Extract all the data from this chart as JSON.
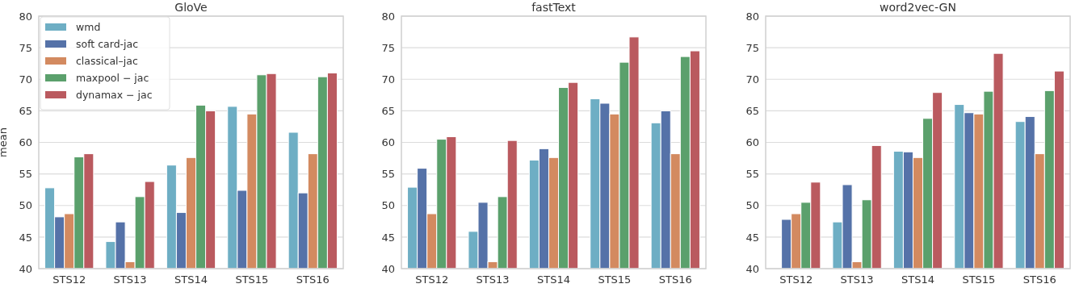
{
  "chart_data": [
    {
      "type": "bar",
      "title": "GloVe",
      "ylabel": "mean",
      "categories": [
        "STS12",
        "STS13",
        "STS14",
        "STS15",
        "STS16"
      ],
      "ylim": [
        40,
        80
      ],
      "yticks": [
        40,
        45,
        50,
        55,
        60,
        65,
        70,
        75,
        80
      ],
      "grid": "y",
      "legend": "top left",
      "series": [
        {
          "name": "wmd",
          "color": "#6eaec4",
          "values": [
            52.8,
            44.3,
            56.4,
            65.7,
            61.6
          ]
        },
        {
          "name": "soft card-jac",
          "color": "#5572a8",
          "values": [
            48.2,
            47.4,
            48.9,
            52.4,
            52.0
          ]
        },
        {
          "name": "classical–jac",
          "color": "#d38a60",
          "values": [
            48.7,
            41.1,
            57.6,
            64.5,
            58.2
          ]
        },
        {
          "name": "maxpool − jac",
          "color": "#5ba06c",
          "values": [
            57.7,
            51.4,
            65.9,
            70.7,
            70.4
          ]
        },
        {
          "name": "dynamax − jac",
          "color": "#ba5a5f",
          "values": [
            58.2,
            53.8,
            65.0,
            70.9,
            71.0
          ]
        }
      ]
    },
    {
      "type": "bar",
      "title": "fastText",
      "categories": [
        "STS12",
        "STS13",
        "STS14",
        "STS15",
        "STS16"
      ],
      "ylim": [
        40,
        80
      ],
      "yticks": [
        40,
        45,
        50,
        55,
        60,
        65,
        70,
        75,
        80
      ],
      "grid": "y",
      "series": [
        {
          "color": "#6eaec4",
          "values": [
            52.9,
            45.9,
            57.2,
            66.9,
            63.1
          ]
        },
        {
          "color": "#5572a8",
          "values": [
            55.9,
            50.5,
            59.0,
            66.2,
            65.0
          ]
        },
        {
          "color": "#d38a60",
          "values": [
            48.7,
            41.1,
            57.6,
            64.5,
            58.2
          ]
        },
        {
          "color": "#5ba06c",
          "values": [
            60.5,
            51.4,
            68.7,
            72.7,
            73.6
          ]
        },
        {
          "color": "#ba5a5f",
          "values": [
            60.9,
            60.3,
            69.5,
            76.7,
            74.5
          ]
        }
      ]
    },
    {
      "type": "bar",
      "title": "word2vec-GN",
      "categories": [
        "STS12",
        "STS13",
        "STS14",
        "STS15",
        "STS16"
      ],
      "ylim": [
        40,
        80
      ],
      "yticks": [
        40,
        45,
        50,
        55,
        60,
        65,
        70,
        75,
        80
      ],
      "grid": "y",
      "series": [
        {
          "color": "#6eaec4",
          "values": [
            null,
            47.4,
            58.6,
            66.0,
            63.3
          ]
        },
        {
          "color": "#5572a8",
          "values": [
            47.8,
            53.3,
            58.5,
            64.7,
            64.1
          ]
        },
        {
          "color": "#d38a60",
          "values": [
            48.7,
            41.1,
            57.6,
            64.5,
            58.2
          ]
        },
        {
          "color": "#5ba06c",
          "values": [
            50.5,
            50.9,
            63.8,
            68.1,
            68.2
          ]
        },
        {
          "color": "#ba5a5f",
          "values": [
            53.7,
            59.5,
            67.9,
            74.1,
            71.3
          ]
        }
      ]
    }
  ]
}
